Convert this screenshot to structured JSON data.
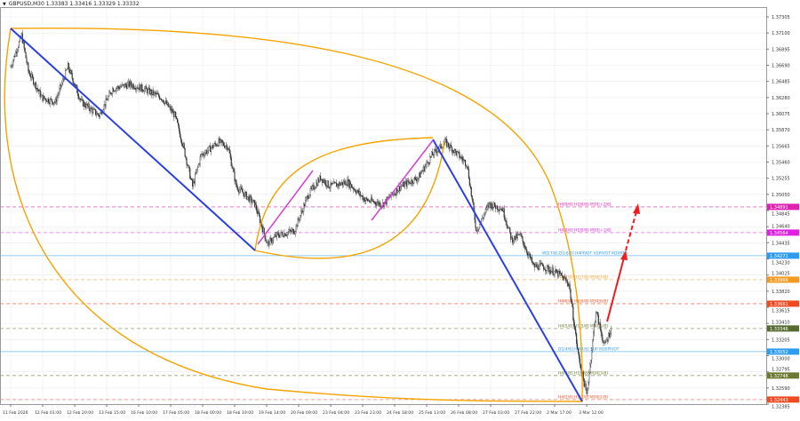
{
  "header": {
    "title": "GBPUSD,M30  1.33383 1.33416 1.33329 1.33332"
  },
  "colors": {
    "trendline": "#2b3fe6",
    "arc": "#f5a300",
    "channel": "#d63fd6",
    "arrow": "#f21b1b",
    "candle": "#333333",
    "grid": "#ececec"
  },
  "chart_data": {
    "type": "candlestick",
    "symbol": "GBPUSD",
    "timeframe": "M30",
    "ylim": [
      1.32385,
      1.37305
    ],
    "y_ticks": [
      "1.37305",
      "1.37100",
      "1.36895",
      "1.36690",
      "1.36485",
      "1.36280",
      "1.36075",
      "1.35870",
      "1.35665",
      "1.35460",
      "1.35255",
      "1.35050",
      "1.34845",
      "1.34640",
      "1.34435",
      "1.34230",
      "1.34025",
      "1.33820",
      "1.33615",
      "1.33410",
      "1.33205",
      "1.33000",
      "1.32795",
      "1.32590",
      "1.32385"
    ],
    "x_ticks": [
      "11 Feb 2026",
      "12 Feb 01:00",
      "12 Feb 20:00",
      "13 Feb 15:00",
      "16 Feb 10:00",
      "17 Feb 05:00",
      "18 Feb 00:00",
      "18 Feb 19:00",
      "19 Feb 14:00",
      "20 Feb 09:00",
      "23 Feb 04:00",
      "23 Feb 23:00",
      "24 Feb 18:00",
      "25 Feb 13:00",
      "26 Feb 08:00",
      "27 Feb 03:00",
      "27 Feb 22:00",
      "2 Mar 17:00",
      "3 Mar 12:00"
    ],
    "bars_per_x_tick": 38,
    "price_path": [
      [
        0,
        1.36673
      ],
      [
        13,
        1.37068
      ],
      [
        21,
        1.36617
      ],
      [
        37,
        1.36279
      ],
      [
        53,
        1.36222
      ],
      [
        68,
        1.36673
      ],
      [
        84,
        1.36222
      ],
      [
        105,
        1.36053
      ],
      [
        121,
        1.36391
      ],
      [
        142,
        1.36448
      ],
      [
        158,
        1.36391
      ],
      [
        179,
        1.36279
      ],
      [
        195,
        1.36053
      ],
      [
        205,
        1.35658
      ],
      [
        216,
        1.35151
      ],
      [
        226,
        1.35545
      ],
      [
        247,
        1.35715
      ],
      [
        258,
        1.35658
      ],
      [
        268,
        1.35151
      ],
      [
        290,
        1.34925
      ],
      [
        305,
        1.34417
      ],
      [
        316,
        1.3453
      ],
      [
        337,
        1.34587
      ],
      [
        353,
        1.35038
      ],
      [
        368,
        1.35263
      ],
      [
        379,
        1.35151
      ],
      [
        400,
        1.35207
      ],
      [
        421,
        1.34981
      ],
      [
        442,
        1.34925
      ],
      [
        463,
        1.35151
      ],
      [
        484,
        1.35263
      ],
      [
        500,
        1.35545
      ],
      [
        516,
        1.35715
      ],
      [
        532,
        1.35545
      ],
      [
        542,
        1.35433
      ],
      [
        553,
        1.34587
      ],
      [
        568,
        1.34925
      ],
      [
        584,
        1.34868
      ],
      [
        595,
        1.34474
      ],
      [
        605,
        1.3453
      ],
      [
        621,
        1.34135
      ],
      [
        632,
        1.34135
      ],
      [
        653,
        1.34023
      ],
      [
        663,
        1.3391
      ],
      [
        674,
        1.33007
      ],
      [
        684,
        1.325
      ],
      [
        695,
        1.33571
      ],
      [
        705,
        1.3312
      ],
      [
        714,
        1.33368
      ]
    ],
    "levels": [
      {
        "price": 1.34891,
        "tag": "1.34891",
        "label": "H4[8/8] H1[8/8] M30[+2/8]",
        "color": "#e020b0",
        "dash": true
      },
      {
        "price": 1.34564,
        "tag": "1.34564",
        "label": "H4[8/8] H1[8/8] M30[+1/8]",
        "color": "#e020e0",
        "dash": true
      },
      {
        "price": 1.34271,
        "tag": "1.34271",
        "label": "W1[7/8] D1[8/8] H4PIVOT H1PIVOT M30RES",
        "color": "#2c9cf0",
        "dash": false
      },
      {
        "price": 1.33966,
        "tag": "1.33966",
        "label": "H4[7/8] H1[7/8] M30[7/8]",
        "color": "#f59a20",
        "dash": true
      },
      {
        "price": 1.33661,
        "tag": "1.33661",
        "label": "H4[6/8] H1[6/8] M30[6/8]",
        "color": "#f04a20",
        "dash": true
      },
      {
        "price": 1.33346,
        "tag": "1.33346",
        "label": "H4[5/8] H1[5/8] M30[5/8]",
        "color": "#6b7a30",
        "dash": true
      },
      {
        "price": 1.33052,
        "tag": "1.33052",
        "label": "D1[4/8] H4[4/8] SUP M30PIVOT",
        "color": "#2c9cf0",
        "dash": false
      },
      {
        "price": 1.32748,
        "tag": "1.32748",
        "label": "H4[3/8] H1[3/8] M30[3/8]",
        "color": "#6b7a30",
        "dash": true
      },
      {
        "price": 1.32443,
        "tag": "1.32443",
        "label": "H4[2/8] H1[2/8] M30[2/8]",
        "color": "#f04a20",
        "dash": true
      }
    ]
  }
}
